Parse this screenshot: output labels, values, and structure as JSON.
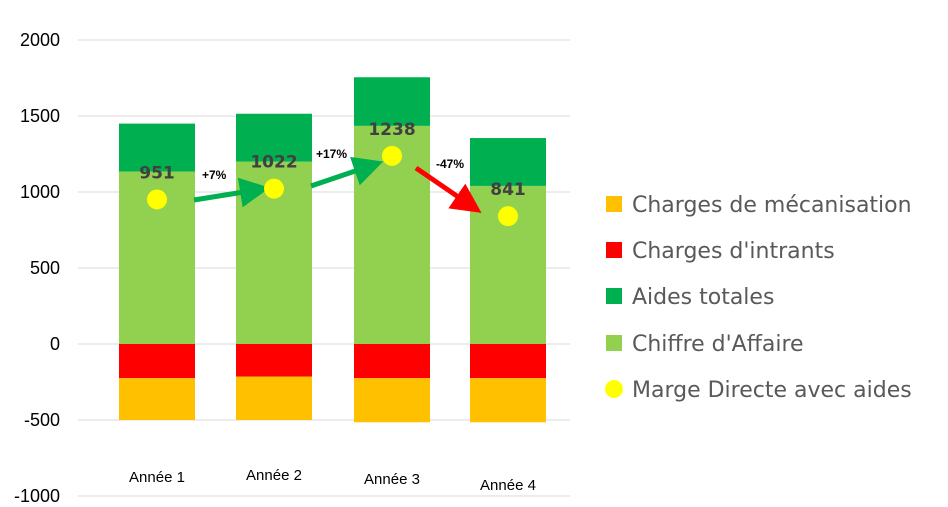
{
  "chart_data": {
    "type": "bar",
    "stacked": true,
    "categories": [
      "Année 1",
      "Année 2",
      "Année 3",
      "Année 4"
    ],
    "ylim": [
      -1000,
      2000
    ],
    "yticks": [
      2000,
      1500,
      1000,
      500,
      0,
      -500,
      -1000
    ],
    "grid": true,
    "legend_position": "right",
    "series": [
      {
        "name": "Charges de mécanisation",
        "color": "#FFC000",
        "values": [
          -275,
          -285,
          -290,
          -290
        ]
      },
      {
        "name": "Charges d'intrants",
        "color": "#FF0000",
        "values": [
          -225,
          -215,
          -225,
          -225
        ]
      },
      {
        "name": "Aides totales",
        "color": "#00B050",
        "values": [
          315,
          315,
          320,
          315
        ]
      },
      {
        "name": "Chiffre d'Affaire",
        "color": "#92D050",
        "values": [
          1135,
          1200,
          1435,
          1040
        ]
      }
    ],
    "line_series": {
      "name": "Marge Directe avec aides",
      "color": "#FFFF00",
      "values": [
        951,
        1022,
        1238,
        841
      ],
      "labels": [
        "951",
        "1022",
        "1238",
        "841"
      ]
    },
    "changes": [
      {
        "from": 0,
        "to": 1,
        "label": "+7%",
        "color": "#00B050"
      },
      {
        "from": 1,
        "to": 2,
        "label": "+17%",
        "color": "#00B050"
      },
      {
        "from": 2,
        "to": 3,
        "label": "-47%",
        "color": "#FF0000"
      }
    ],
    "legend_order": [
      "Charges de mécanisation",
      "Charges d'intrants",
      "Aides totales",
      "Chiffre d'Affaire",
      "Marge Directe avec aides"
    ]
  }
}
